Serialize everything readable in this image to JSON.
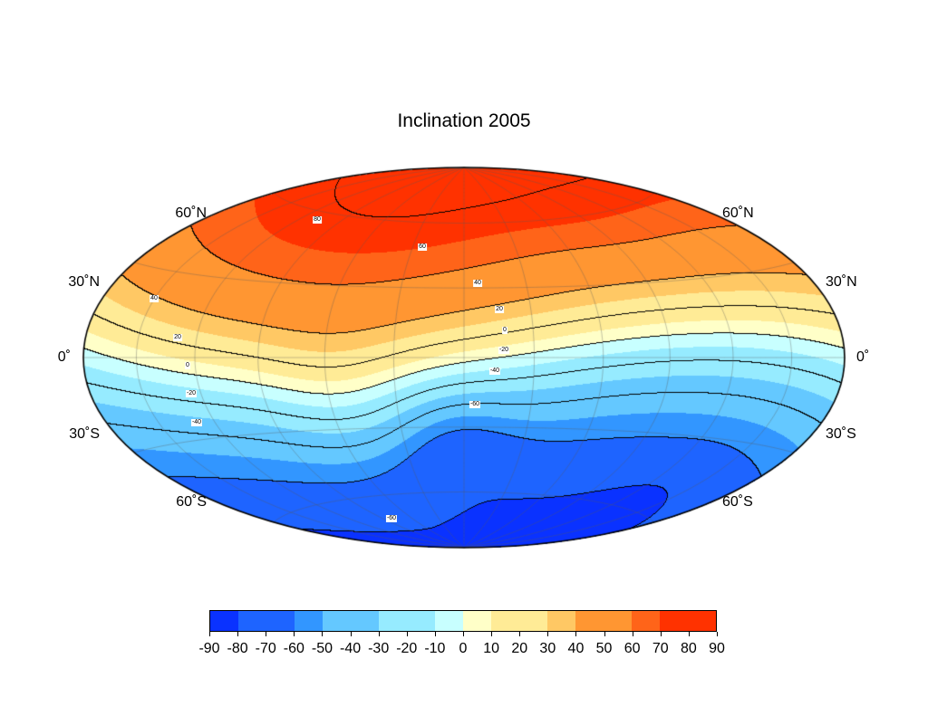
{
  "chart_data": {
    "type": "heatmap",
    "title": "Inclination 2005",
    "projection": "hammer",
    "center_longitude": 0,
    "grid": true,
    "grid_spacing_deg": 30,
    "lat_labels": [
      "60˚N",
      "30˚N",
      "0˚",
      "30˚S",
      "60˚S"
    ],
    "contour_interval": 20,
    "contour_labels_left": [
      "40",
      "20",
      "0",
      "-20",
      "-40"
    ],
    "contour_labels_center": [
      "80",
      "60",
      "40",
      "20",
      "0",
      "-20",
      "-40",
      "-60",
      "-60"
    ],
    "colorbar": {
      "ticks": [
        "-90",
        "-80",
        "-70",
        "-60",
        "-50",
        "-40",
        "-30",
        "-20",
        "-10",
        "0",
        "10",
        "20",
        "30",
        "40",
        "50",
        "60",
        "70",
        "80",
        "90"
      ],
      "colors": [
        "#0a32ff",
        "#1e64ff",
        "#1e64ff",
        "#3296ff",
        "#64c8ff",
        "#64c8ff",
        "#96ebff",
        "#96ebff",
        "#c8ffff",
        "#ffffc8",
        "#ffeb96",
        "#ffeb96",
        "#ffc864",
        "#ff9632",
        "#ff9632",
        "#ff6419",
        "#ff3200",
        "#ff3200"
      ],
      "range": [
        -90,
        90
      ]
    }
  }
}
